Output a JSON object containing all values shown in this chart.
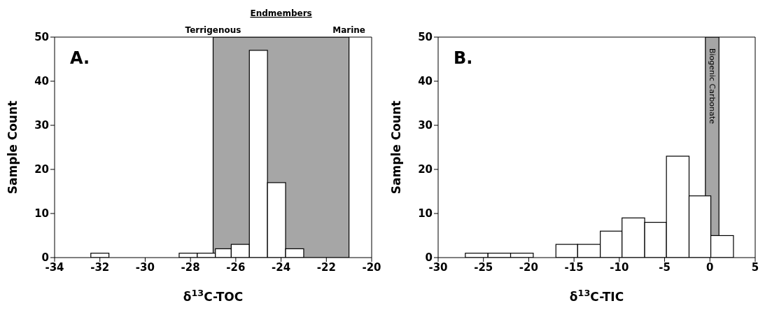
{
  "chart_data": [
    {
      "type": "histogram",
      "title": "A.",
      "xlabel": "δ$^{13}$C-TOC",
      "ylabel": "Sample Count",
      "bins": [
        -32.4,
        -31.6,
        -28.5,
        -27.7,
        -26.9,
        -26.2,
        -25.4,
        -24.6,
        -23.8,
        -23.0
      ],
      "values": [
        1,
        0,
        1,
        1,
        2,
        3,
        47,
        17,
        2
      ],
      "color": "#ffffff",
      "xlim": [
        -34,
        -20
      ],
      "xticks": [
        -34,
        -32,
        -30,
        -28,
        -26,
        -24,
        -22,
        -20
      ],
      "ylim": [
        0,
        50
      ],
      "yticks": [
        0,
        10,
        20,
        30,
        40,
        50
      ],
      "bands": [
        {
          "axis": "x",
          "from": -27,
          "to": -21,
          "color": "#a6a6a6"
        }
      ],
      "annotations": [
        "Endmembers",
        {
          "text": "Terrigenous",
          "x": -27,
          "y": 50
        },
        {
          "text": "Marine",
          "x": -21,
          "y": 50
        }
      ],
      "grid": false,
      "legend": false
    },
    {
      "type": "histogram",
      "title": "B.",
      "xlabel": "δ$^{13}$C-TIC",
      "ylabel": "Sample Count",
      "bins": [
        -27,
        -24.5,
        -22,
        -19.5,
        -17,
        -14.6,
        -12.1,
        -9.7,
        -7.2,
        -4.8,
        -2.3,
        0.1,
        2.6
      ],
      "values": [
        1,
        1,
        1,
        0,
        3,
        3,
        6,
        9,
        8,
        23,
        14,
        5
      ],
      "color": "#ffffff",
      "xlim": [
        -30,
        5
      ],
      "xticks": [
        -30,
        -25,
        -20,
        -15,
        -10,
        -5,
        0,
        5
      ],
      "ylim": [
        0,
        50
      ],
      "yticks": [
        0,
        10,
        20,
        30,
        40,
        50
      ],
      "bands": [
        {
          "axis": "x",
          "from": -0.5,
          "to": 1,
          "label": "Biogenic Carbonate",
          "color": "#a6a6a6"
        }
      ],
      "grid": false,
      "legend": false
    }
  ]
}
